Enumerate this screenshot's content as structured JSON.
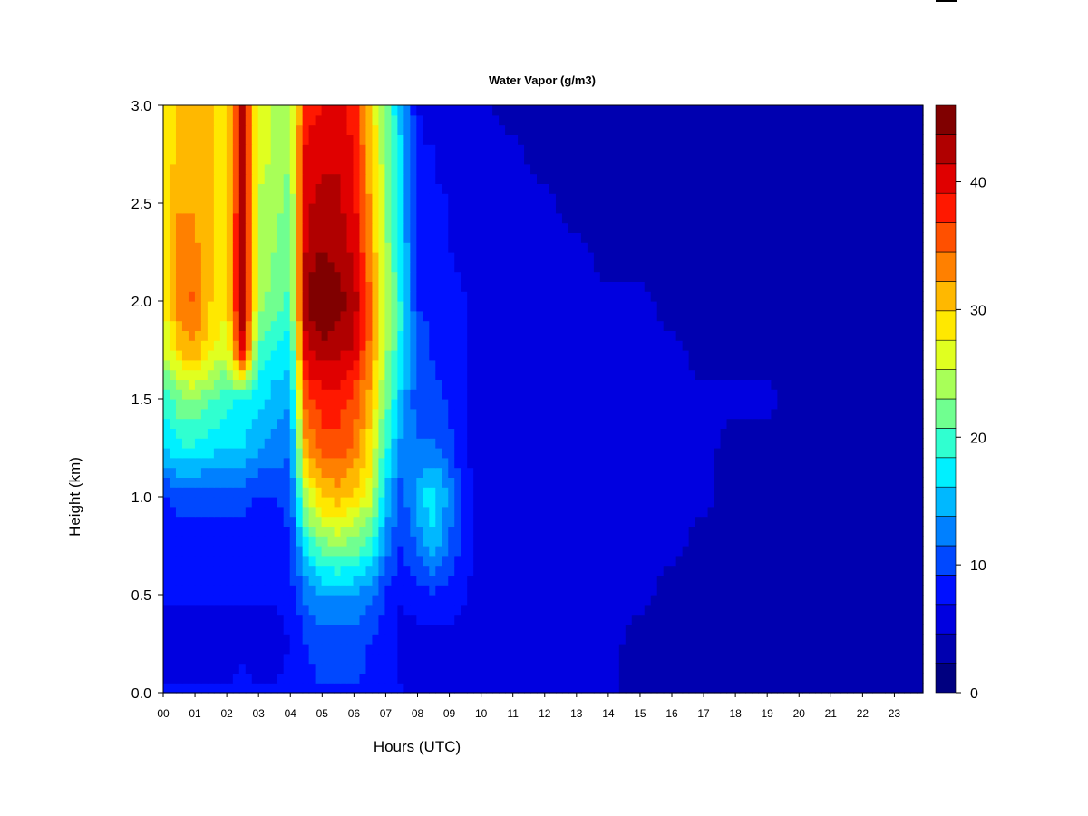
{
  "chart_data": {
    "type": "heatmap",
    "title": "Water Vapor (g/m3)",
    "xlabel": "Hours (UTC)",
    "ylabel": "Height (km)",
    "xlim": [
      0,
      23.9
    ],
    "ylim": [
      0,
      3.0
    ],
    "x_tick_values": [
      0,
      1,
      2,
      3,
      4,
      5,
      6,
      7,
      8,
      9,
      10,
      11,
      12,
      13,
      14,
      15,
      16,
      17,
      18,
      19,
      20,
      21,
      22,
      23
    ],
    "x_tick_labels": [
      "00",
      "01",
      "02",
      "03",
      "04",
      "05",
      "06",
      "07",
      "08",
      "09",
      "10",
      "11",
      "12",
      "13",
      "14",
      "15",
      "16",
      "17",
      "18",
      "19",
      "20",
      "21",
      "22",
      "23"
    ],
    "y_tick_values": [
      0,
      0.5,
      1.0,
      1.5,
      2.0,
      2.5,
      3.0
    ],
    "y_tick_labels": [
      "0.0",
      "0.5",
      "1.0",
      "1.5",
      "2.0",
      "2.5",
      "3.0"
    ],
    "colorbar": {
      "levels": [
        0,
        3,
        6,
        9,
        12,
        15,
        18,
        21,
        24,
        27,
        30,
        33,
        36,
        39,
        42,
        45,
        46
      ],
      "colors": [
        "#000080",
        "#0000b0",
        "#0000e0",
        "#0010ff",
        "#0048ff",
        "#0080ff",
        "#00b8ff",
        "#00f0ff",
        "#30ffd0",
        "#70ff90",
        "#a8ff58",
        "#e0ff20",
        "#ffe800",
        "#ffb800",
        "#ff8000",
        "#ff5000",
        "#ff1800",
        "#e00000",
        "#b00000",
        "#800000"
      ],
      "tick_values": [
        0,
        10,
        20,
        30,
        40
      ],
      "tick_labels": [
        "0",
        "10",
        "20",
        "30",
        "40"
      ],
      "max": 46
    },
    "hours": [
      0,
      0.5,
      1,
      1.5,
      2,
      2.5,
      3,
      3.5,
      4,
      4.5,
      5,
      5.5,
      6,
      6.5,
      7,
      7.5,
      8,
      8.5,
      9,
      9.5,
      10,
      11,
      12,
      13,
      14,
      15,
      16,
      17,
      18,
      19,
      20,
      21,
      22,
      23,
      23.9
    ],
    "heights": [
      0,
      0.25,
      0.5,
      0.75,
      1.0,
      1.25,
      1.5,
      1.75,
      2.0,
      2.25,
      2.5,
      2.75,
      3.0
    ],
    "values": [
      [
        7,
        7,
        7,
        7,
        7,
        8,
        7,
        7,
        8,
        9,
        9,
        9,
        9,
        9,
        8,
        7,
        6,
        6,
        6,
        6,
        5,
        5,
        5,
        5,
        5,
        4,
        4,
        4,
        4,
        4,
        4,
        4,
        4,
        4,
        4
      ],
      [
        6,
        6,
        6,
        6,
        6,
        6,
        6,
        6,
        7,
        9,
        10,
        10,
        10,
        9,
        8,
        6,
        6,
        6,
        6,
        6,
        5,
        5,
        5,
        5,
        5,
        4,
        4,
        4,
        4,
        4,
        4,
        4,
        4,
        4,
        4
      ],
      [
        7,
        7,
        7,
        7,
        7,
        7,
        7,
        7,
        8,
        12,
        14,
        14,
        14,
        12,
        9,
        7,
        8,
        9,
        8,
        7,
        6,
        5,
        5,
        5,
        5,
        5,
        4,
        4,
        4,
        4,
        4,
        4,
        4,
        4,
        4
      ],
      [
        8,
        8,
        8,
        8,
        8,
        8,
        8,
        8,
        9,
        18,
        22,
        23,
        22,
        19,
        13,
        9,
        12,
        15,
        11,
        8,
        6,
        5,
        5,
        5,
        5,
        5,
        5,
        4,
        4,
        4,
        4,
        4,
        4,
        4,
        4
      ],
      [
        9,
        10,
        10,
        10,
        10,
        10,
        9,
        9,
        10,
        25,
        30,
        31,
        29,
        26,
        16,
        10,
        15,
        18,
        13,
        8,
        6,
        6,
        5,
        5,
        5,
        5,
        5,
        5,
        4,
        4,
        4,
        4,
        4,
        4,
        4
      ],
      [
        16,
        18,
        18,
        17,
        16,
        16,
        14,
        13,
        12,
        32,
        36,
        36,
        34,
        29,
        19,
        13,
        12,
        12,
        10,
        7,
        6,
        6,
        5,
        5,
        5,
        5,
        5,
        5,
        4,
        4,
        4,
        4,
        4,
        4,
        4
      ],
      [
        19,
        22,
        23,
        21,
        19,
        18,
        17,
        15,
        14,
        36,
        38,
        38,
        36,
        31,
        22,
        15,
        10,
        10,
        9,
        7,
        6,
        6,
        5,
        5,
        5,
        5,
        5,
        5,
        5,
        5,
        4,
        4,
        4,
        4,
        4
      ],
      [
        25,
        30,
        32,
        28,
        26,
        40,
        20,
        18,
        17,
        41,
        43,
        42,
        41,
        34,
        24,
        18,
        10,
        9,
        8,
        7,
        6,
        5,
        5,
        5,
        5,
        5,
        5,
        4,
        4,
        4,
        4,
        3,
        3,
        3,
        3
      ],
      [
        27,
        34,
        35,
        30,
        28,
        44,
        24,
        22,
        20,
        44,
        46,
        45,
        43,
        35,
        25,
        18,
        9,
        9,
        8,
        7,
        6,
        5,
        5,
        5,
        5,
        5,
        4,
        4,
        3,
        3,
        3,
        3,
        3,
        3,
        3
      ],
      [
        28,
        33,
        33,
        30,
        28,
        44,
        24,
        23,
        21,
        42,
        44,
        43,
        41,
        33,
        24,
        17,
        8,
        8,
        7,
        6,
        6,
        5,
        5,
        5,
        4,
        4,
        4,
        3,
        3,
        3,
        3,
        3,
        3,
        3,
        3
      ],
      [
        28,
        32,
        32,
        30,
        28,
        43,
        25,
        24,
        22,
        41,
        42,
        42,
        40,
        32,
        24,
        16,
        8,
        7,
        7,
        6,
        6,
        5,
        5,
        4,
        4,
        4,
        3,
        3,
        3,
        3,
        3,
        3,
        3,
        3,
        3
      ],
      [
        28,
        31,
        31,
        30,
        28,
        43,
        26,
        25,
        23,
        40,
        41,
        41,
        39,
        31,
        23,
        16,
        7,
        7,
        6,
        6,
        5,
        5,
        4,
        4,
        3,
        3,
        3,
        3,
        3,
        3,
        3,
        3,
        3,
        3,
        3
      ],
      [
        28,
        31,
        31,
        30,
        28,
        42,
        26,
        25,
        24,
        38,
        39,
        40,
        38,
        30,
        22,
        15,
        7,
        6,
        6,
        5,
        5,
        4,
        4,
        3,
        3,
        3,
        3,
        3,
        3,
        3,
        3,
        3,
        3,
        3,
        3
      ]
    ]
  }
}
